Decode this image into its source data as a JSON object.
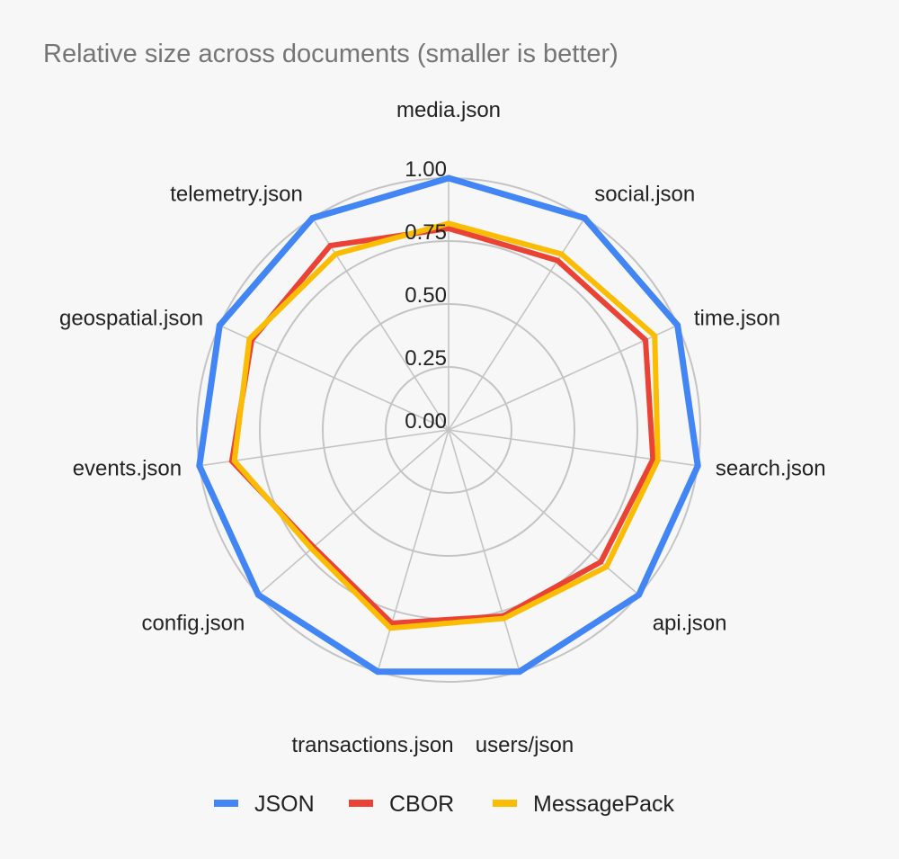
{
  "chart_data": {
    "type": "radar",
    "title": "Relative size across documents (smaller is better)",
    "categories": [
      "media.json",
      "social.json",
      "time.json",
      "search.json",
      "api.json",
      "users/json",
      "transactions.json",
      "config.json",
      "events.json",
      "geospatial.json",
      "telemetry.json"
    ],
    "radial_ticks": [
      "0.00",
      "0.25",
      "0.50",
      "0.75",
      "1.00"
    ],
    "rlim": [
      0,
      1
    ],
    "grid": true,
    "legend_position": "bottom",
    "series": [
      {
        "name": "JSON",
        "color": "#4285f4",
        "values": [
          1.0,
          1.0,
          1.0,
          1.0,
          1.0,
          1.0,
          1.0,
          1.0,
          1.0,
          1.0,
          1.0
        ]
      },
      {
        "name": "CBOR",
        "color": "#ea4335",
        "values": [
          0.8,
          0.8,
          0.86,
          0.82,
          0.8,
          0.77,
          0.8,
          0.71,
          0.87,
          0.86,
          0.87
        ]
      },
      {
        "name": "MessagePack",
        "color": "#fbbc04",
        "values": [
          0.82,
          0.83,
          0.9,
          0.84,
          0.83,
          0.78,
          0.82,
          0.72,
          0.86,
          0.87,
          0.83
        ]
      }
    ]
  }
}
